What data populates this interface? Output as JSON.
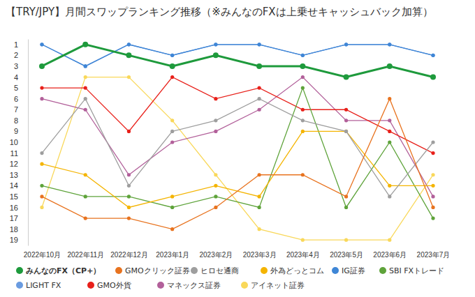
{
  "chart_data": {
    "type": "line",
    "title": "【TRY/JPY】月間スワップランキング推移（※みんなのFXは上乗せキャッシュバック加算）",
    "categories": [
      "2022年10月",
      "2022年11月",
      "2022年12月",
      "2023年1月",
      "2023年2月",
      "2023年3月",
      "2023年4月",
      "2023年5月",
      "2023年6月",
      "2023年7月"
    ],
    "ylim": [
      19.5,
      0.5
    ],
    "yticks": [
      1,
      2,
      3,
      4,
      5,
      6,
      7,
      8,
      9,
      10,
      11,
      12,
      13,
      14,
      15,
      16,
      17,
      18,
      19
    ],
    "grid": false,
    "legend": "bottom",
    "marker": "circle",
    "series": [
      {
        "name": "みんなのFX（CP+）",
        "color": "#1e9a3c",
        "values": [
          3,
          1,
          2,
          3,
          2,
          3,
          3,
          4,
          3,
          4
        ]
      },
      {
        "name": "GMOクリック証券",
        "color": "#e8731f",
        "values": [
          15,
          17,
          17,
          18,
          16,
          13,
          13,
          15,
          6,
          16
        ]
      },
      {
        "name": "ヒロセ通商",
        "color": "#9e9e9e",
        "values": [
          11,
          6,
          14,
          9,
          8,
          6,
          8,
          9,
          15,
          10
        ]
      },
      {
        "name": "外為どっとコム",
        "color": "#f4b400",
        "values": [
          12,
          13,
          16,
          15,
          14,
          15,
          9,
          9,
          14,
          14
        ]
      },
      {
        "name": "IG証券",
        "color": "#3f86d6",
        "values": [
          1,
          3,
          1,
          2,
          1,
          1,
          2,
          1,
          1,
          2
        ]
      },
      {
        "name": "SBI FXトレード",
        "color": "#5ea33a",
        "values": [
          14,
          15,
          15,
          16,
          15,
          16,
          5,
          16,
          10,
          17
        ]
      },
      {
        "name": "LIGHT FX",
        "color": "#6a9be0",
        "values": [
          1,
          3,
          1,
          2,
          1,
          1,
          2,
          1,
          1,
          2
        ]
      },
      {
        "name": "GMO外貨",
        "color": "#e8201a",
        "values": [
          5,
          5,
          9,
          4,
          6,
          5,
          7,
          7,
          9,
          11
        ]
      },
      {
        "name": "マネックス証券",
        "color": "#b2609a",
        "values": [
          6,
          7,
          13,
          10,
          9,
          7,
          4,
          8,
          8,
          15
        ]
      },
      {
        "name": "アイネット証券",
        "color": "#f9d85a",
        "values": [
          16,
          4,
          4,
          8,
          13,
          18,
          19,
          19,
          19,
          13
        ]
      }
    ]
  }
}
